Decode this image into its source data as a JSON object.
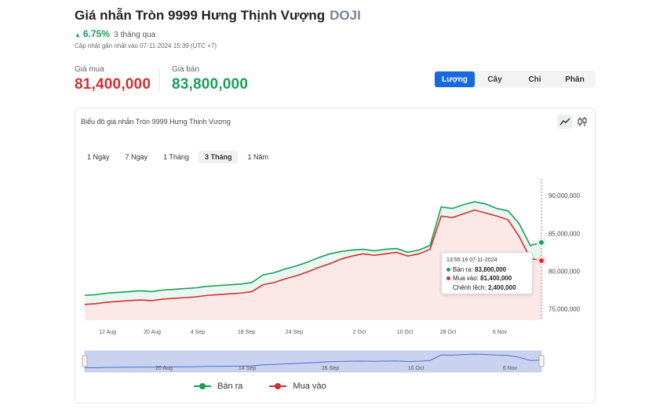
{
  "header": {
    "title": "Giá nhẫn Tròn 9999 Hưng Thịnh Vượng",
    "brand": "DOJI",
    "change_pct": "6.75%",
    "change_period": "3 tháng qua",
    "updated": "Cập nhật gần nhất vào 07-11-2024 15:39 (UTC +7)"
  },
  "prices": {
    "buy_label": "Giá mua",
    "buy_value": "81,400,000",
    "sell_label": "Giá bán",
    "sell_value": "83,800,000"
  },
  "unit_tabs": [
    "Lượng",
    "Cây",
    "Chỉ",
    "Phân"
  ],
  "active_unit_tab": "Lượng",
  "chart_card": {
    "title": "Biểu đồ giá nhẫn Tròn 9999 Hưng Thịnh Vượng",
    "range_tabs": [
      "1 Ngày",
      "7 Ngày",
      "1 Tháng",
      "3 Tháng",
      "1 Năm"
    ],
    "active_range": "3 Tháng"
  },
  "tooltip": {
    "time": "13:55:16 07-11-2024",
    "sell_label": "Bán ra:",
    "sell_value": "83,800,000",
    "buy_label": "Mua vào:",
    "buy_value": "81,400,000",
    "diff_label": "Chênh lệch:",
    "diff_value": "2,400,000"
  },
  "colors": {
    "sell": "#1a9e57",
    "buy": "#d32f2f",
    "buy_fill": "#fde8e8",
    "sell_fill": "#eaf7f0",
    "accent": "#1769e0",
    "navigator": "#c9d3ef"
  },
  "icons": {
    "line_chart": "line-chart-icon",
    "candle": "candlestick-icon",
    "up": "triangle-up-icon"
  },
  "chart_data": {
    "type": "area",
    "x_tick_labels": [
      "12 Aug",
      "20 Aug",
      "4 Sep",
      "18 Sep",
      "24 Sep",
      "2 Oct",
      "10 Oct",
      "28 Oct",
      "6 Nov"
    ],
    "y_ticks": [
      75000000,
      80000000,
      85000000,
      90000000
    ],
    "y_tick_labels": [
      "75,000,000",
      "80,000,000",
      "85,000,000",
      "90,000,000"
    ],
    "ylim": [
      73500000,
      92000000
    ],
    "navigator_tick_labels": [
      "20 Aug",
      "14 Sep",
      "26 Sep",
      "10 Oct",
      "6 Nov"
    ],
    "series": [
      {
        "name": "Bán ra",
        "values": [
          76800000,
          76900000,
          77100000,
          77200000,
          77300000,
          77400000,
          77300000,
          77500000,
          77600000,
          77700000,
          77800000,
          78000000,
          78100000,
          78200000,
          78300000,
          78500000,
          79500000,
          79800000,
          80300000,
          80700000,
          81200000,
          81800000,
          82300000,
          82600000,
          82800000,
          82900000,
          82700000,
          82900000,
          83000000,
          82500000,
          82800000,
          83400000,
          88500000,
          88300000,
          88800000,
          89200000,
          88900000,
          88300000,
          88000000,
          86300000,
          83400000,
          83800000
        ]
      },
      {
        "name": "Mua vào",
        "values": [
          75600000,
          75700000,
          75900000,
          76000000,
          76100000,
          76200000,
          76100000,
          76300000,
          76400000,
          76500000,
          76600000,
          76800000,
          76900000,
          77000000,
          77100000,
          77300000,
          78200000,
          78500000,
          79000000,
          79400000,
          79900000,
          80500000,
          81000000,
          81600000,
          82000000,
          82300000,
          82100000,
          82300000,
          82500000,
          82000000,
          82300000,
          82900000,
          87300000,
          87100000,
          87600000,
          88100000,
          87700000,
          87300000,
          86800000,
          84600000,
          81700000,
          81400000
        ]
      }
    ],
    "legend": [
      "Bán ra",
      "Mua vào"
    ],
    "legend_position": "bottom-center",
    "grid": false
  }
}
